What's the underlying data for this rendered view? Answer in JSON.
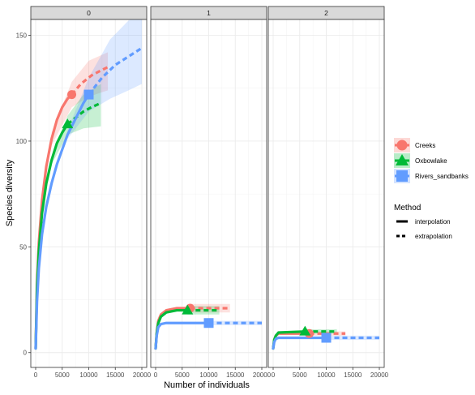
{
  "chart_data": {
    "type": "line",
    "facets": [
      "0",
      "1",
      "2"
    ],
    "xlabel": "Number of individuals",
    "ylabel": "Species diversity",
    "xlim": [
      0,
      20000
    ],
    "ylim": [
      0,
      150
    ],
    "x_ticks": [
      0,
      5000,
      10000,
      15000,
      20000
    ],
    "y_ticks": [
      0,
      50,
      100,
      150
    ],
    "x_tick_labels": [
      "0",
      "5000",
      "10000",
      "15000",
      "20000"
    ],
    "y_tick_labels": [
      "0",
      "50",
      "100",
      "150"
    ],
    "grid": true,
    "legend_placement": "right",
    "legend_groups": {
      "title": "",
      "items": [
        {
          "label": "Creeks",
          "color": "#F8766D",
          "shape": "circle"
        },
        {
          "label": "Oxbowlake",
          "color": "#00BA38",
          "shape": "triangle"
        },
        {
          "label": "Rivers_sandbanks",
          "color": "#619CFF",
          "shape": "square"
        }
      ]
    },
    "legend_method": {
      "title": "Method",
      "items": [
        {
          "label": "interpolation",
          "style": "solid"
        },
        {
          "label": "extrapolation",
          "style": "dashed"
        }
      ]
    },
    "panels": [
      {
        "facet": "0",
        "series": [
          {
            "name": "Creeks",
            "observed": [
              6800,
              122
            ],
            "interpolation": [
              [
                0,
                2
              ],
              [
                250,
                32
              ],
              [
                600,
                52
              ],
              [
                1200,
                72
              ],
              [
                2000,
                88
              ],
              [
                3000,
                101
              ],
              [
                4000,
                110
              ],
              [
                5000,
                116
              ],
              [
                6000,
                120
              ],
              [
                6800,
                122
              ]
            ],
            "extrapolation": [
              [
                6800,
                122
              ],
              [
                8500,
                127
              ],
              [
                10500,
                131
              ],
              [
                12000,
                133
              ],
              [
                13600,
                135
              ]
            ],
            "ci_upper": [
              [
                3000,
                104
              ],
              [
                6800,
                128
              ],
              [
                10000,
                138
              ],
              [
                13600,
                142
              ]
            ],
            "ci_lower": [
              [
                3000,
                98
              ],
              [
                6800,
                116
              ],
              [
                10000,
                121
              ],
              [
                13600,
                124
              ]
            ]
          },
          {
            "name": "Oxbowlake",
            "observed": [
              6000,
              108
            ],
            "interpolation": [
              [
                0,
                2
              ],
              [
                250,
                30
              ],
              [
                600,
                48
              ],
              [
                1200,
                66
              ],
              [
                2000,
                80
              ],
              [
                3000,
                91
              ],
              [
                4000,
                99
              ],
              [
                5000,
                104
              ],
              [
                6000,
                108
              ]
            ],
            "extrapolation": [
              [
                6000,
                108
              ],
              [
                7500,
                111
              ],
              [
                9000,
                114
              ],
              [
                10500,
                116
              ],
              [
                12300,
                118
              ]
            ],
            "ci_upper": [
              [
                3000,
                93
              ],
              [
                6000,
                112
              ],
              [
                9000,
                122
              ],
              [
                12300,
                127
              ]
            ],
            "ci_lower": [
              [
                3000,
                89
              ],
              [
                6000,
                103
              ],
              [
                9000,
                106
              ],
              [
                12300,
                107
              ]
            ]
          },
          {
            "name": "Rivers_sandbanks",
            "observed": [
              10000,
              122
            ],
            "interpolation": [
              [
                0,
                2
              ],
              [
                250,
                24
              ],
              [
                600,
                40
              ],
              [
                1200,
                56
              ],
              [
                2000,
                69
              ],
              [
                3000,
                80
              ],
              [
                4000,
                89
              ],
              [
                5000,
                96
              ],
              [
                6000,
                103
              ],
              [
                7000,
                108
              ],
              [
                8000,
                113
              ],
              [
                9000,
                118
              ],
              [
                10000,
                122
              ]
            ],
            "extrapolation": [
              [
                10000,
                122
              ],
              [
                12500,
                130
              ],
              [
                15000,
                136
              ],
              [
                17500,
                140
              ],
              [
                20000,
                144
              ]
            ],
            "ci_upper": [
              [
                6000,
                105
              ],
              [
                10000,
                130
              ],
              [
                14000,
                148
              ],
              [
                17500,
                157
              ],
              [
                20000,
                161
              ]
            ],
            "ci_lower": [
              [
                6000,
                101
              ],
              [
                10000,
                114
              ],
              [
                14000,
                120
              ],
              [
                17500,
                124
              ],
              [
                20000,
                127
              ]
            ]
          }
        ]
      },
      {
        "facet": "1",
        "series": [
          {
            "name": "Creeks",
            "observed": [
              6500,
              21
            ],
            "interpolation": [
              [
                0,
                2
              ],
              [
                200,
                9
              ],
              [
                500,
                15
              ],
              [
                1000,
                18
              ],
              [
                2000,
                20
              ],
              [
                4000,
                21
              ],
              [
                6500,
                21
              ]
            ],
            "extrapolation": [
              [
                6500,
                21
              ],
              [
                9000,
                21
              ],
              [
                11500,
                21
              ],
              [
                14000,
                21
              ]
            ],
            "ci_upper": [
              [
                6500,
                23
              ],
              [
                14000,
                23
              ]
            ],
            "ci_lower": [
              [
                6500,
                19
              ],
              [
                14000,
                19
              ]
            ]
          },
          {
            "name": "Oxbowlake",
            "observed": [
              6000,
              20
            ],
            "interpolation": [
              [
                0,
                2
              ],
              [
                200,
                9
              ],
              [
                500,
                14
              ],
              [
                1000,
                17
              ],
              [
                2000,
                19
              ],
              [
                4000,
                20
              ],
              [
                6000,
                20
              ]
            ],
            "extrapolation": [
              [
                6000,
                20
              ],
              [
                8000,
                20
              ],
              [
                10000,
                20
              ],
              [
                12000,
                20
              ]
            ],
            "ci_upper": [
              [
                6000,
                22
              ],
              [
                12000,
                22
              ]
            ],
            "ci_lower": [
              [
                6000,
                18
              ],
              [
                12000,
                18
              ]
            ]
          },
          {
            "name": "Rivers_sandbanks",
            "observed": [
              10000,
              14
            ],
            "interpolation": [
              [
                0,
                2
              ],
              [
                200,
                8
              ],
              [
                500,
                12
              ],
              [
                1000,
                13.5
              ],
              [
                2000,
                14
              ],
              [
                10000,
                14
              ]
            ],
            "extrapolation": [
              [
                10000,
                14
              ],
              [
                13000,
                14
              ],
              [
                16500,
                14
              ],
              [
                20000,
                14
              ]
            ],
            "ci_upper": [
              [
                10000,
                15
              ],
              [
                20000,
                15
              ]
            ],
            "ci_lower": [
              [
                10000,
                13
              ],
              [
                20000,
                13
              ]
            ]
          }
        ]
      },
      {
        "facet": "2",
        "series": [
          {
            "name": "Creeks",
            "observed": [
              6800,
              9
            ],
            "interpolation": [
              [
                0,
                2
              ],
              [
                200,
                6
              ],
              [
                500,
                8
              ],
              [
                1000,
                9
              ],
              [
                6800,
                9
              ]
            ],
            "extrapolation": [
              [
                6800,
                9
              ],
              [
                9000,
                9
              ],
              [
                11500,
                9
              ],
              [
                13600,
                9
              ]
            ],
            "ci_upper": [
              [
                6800,
                10
              ],
              [
                13600,
                10
              ]
            ],
            "ci_lower": [
              [
                6800,
                8
              ],
              [
                13600,
                8
              ]
            ]
          },
          {
            "name": "Oxbowlake",
            "observed": [
              6000,
              10
            ],
            "interpolation": [
              [
                0,
                2
              ],
              [
                200,
                6
              ],
              [
                500,
                8
              ],
              [
                1000,
                9.5
              ],
              [
                6000,
                10
              ]
            ],
            "extrapolation": [
              [
                6000,
                10
              ],
              [
                8000,
                10
              ],
              [
                10000,
                10
              ],
              [
                12000,
                10
              ]
            ],
            "ci_upper": [
              [
                6000,
                11
              ],
              [
                12000,
                11
              ]
            ],
            "ci_lower": [
              [
                6000,
                9
              ],
              [
                12000,
                9
              ]
            ]
          },
          {
            "name": "Rivers_sandbanks",
            "observed": [
              10000,
              7
            ],
            "interpolation": [
              [
                0,
                2
              ],
              [
                200,
                5
              ],
              [
                500,
                6.5
              ],
              [
                1000,
                7
              ],
              [
                10000,
                7
              ]
            ],
            "extrapolation": [
              [
                10000,
                7
              ],
              [
                13000,
                7
              ],
              [
                16500,
                7
              ],
              [
                20000,
                7
              ]
            ],
            "ci_upper": [
              [
                10000,
                8
              ],
              [
                20000,
                8
              ]
            ],
            "ci_lower": [
              [
                10000,
                6
              ],
              [
                20000,
                6
              ]
            ]
          }
        ]
      }
    ]
  }
}
